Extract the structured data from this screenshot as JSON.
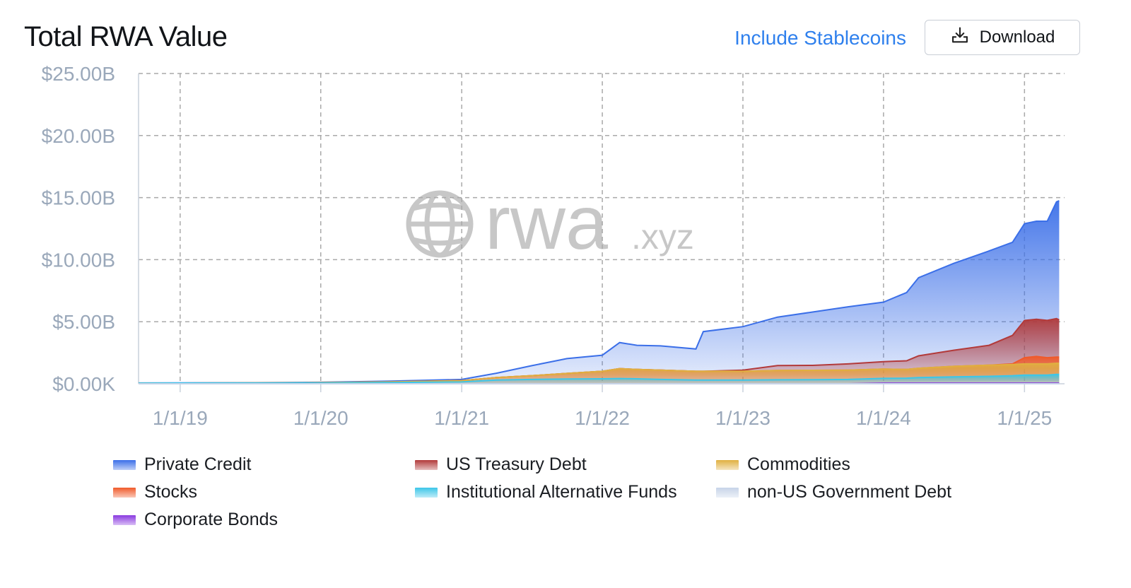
{
  "header": {
    "title": "Total RWA Value",
    "stablecoin_toggle": "Include Stablecoins",
    "download_label": "Download",
    "download_icon": "download-icon"
  },
  "watermark": {
    "brand": "rwa",
    "suffix": ".xyz",
    "icon": "globe-icon"
  },
  "colors": {
    "private_credit": "#3b6fe8",
    "us_treasury": "#b23a3a",
    "commodities": "#e0b040",
    "stocks": "#f05a2a",
    "institutional_alt": "#3cc6e8",
    "non_us_gov": "#c7d4e8",
    "corporate_bonds": "#8a3ae0"
  },
  "chart_data": {
    "type": "area",
    "title": "Total RWA Value",
    "stacked": true,
    "y_ticks": [
      "$0.00K",
      "$5.00B",
      "$10.00B",
      "$15.00B",
      "$20.00B",
      "$25.00B"
    ],
    "ylim": [
      0,
      25
    ],
    "y_unit": "$B",
    "x_ticks": [
      "1/1/19",
      "1/1/20",
      "1/1/21",
      "1/1/22",
      "1/1/23",
      "1/1/24",
      "1/1/25"
    ],
    "xlim": [
      "2018-09-15",
      "2025-04-15"
    ],
    "grid": true,
    "legend_position": "bottom",
    "x": [
      "2018-09-15",
      "2019-06-01",
      "2020-01-01",
      "2020-07-01",
      "2021-01-01",
      "2021-04-01",
      "2021-07-01",
      "2021-10-01",
      "2022-01-01",
      "2022-02-15",
      "2022-04-01",
      "2022-06-01",
      "2022-09-01",
      "2022-09-20",
      "2023-01-01",
      "2023-04-01",
      "2023-07-01",
      "2023-10-01",
      "2024-01-01",
      "2024-03-01",
      "2024-04-01",
      "2024-07-01",
      "2024-10-01",
      "2024-12-01",
      "2025-01-01",
      "2025-02-01",
      "2025-03-01",
      "2025-03-25",
      "2025-04-01"
    ],
    "series": [
      {
        "name": "Private Credit",
        "key": "private_credit",
        "values": [
          0.01,
          0.02,
          0.03,
          0.06,
          0.1,
          0.35,
          0.8,
          1.2,
          1.3,
          2.1,
          1.95,
          1.95,
          1.8,
          3.2,
          3.5,
          3.9,
          4.3,
          4.6,
          4.8,
          5.5,
          6.3,
          7.0,
          7.6,
          7.5,
          7.8,
          7.9,
          8.0,
          9.4,
          9.6
        ]
      },
      {
        "name": "US Treasury Debt",
        "key": "us_treasury",
        "values": [
          0,
          0,
          0,
          0,
          0,
          0,
          0,
          0,
          0,
          0,
          0,
          0,
          0,
          0,
          0.1,
          0.4,
          0.4,
          0.5,
          0.6,
          0.7,
          1.0,
          1.3,
          1.6,
          2.3,
          3.0,
          3.0,
          3.0,
          3.1,
          3.0
        ]
      },
      {
        "name": "Commodities",
        "key": "commodities",
        "values": [
          0,
          0,
          0.02,
          0.05,
          0.1,
          0.2,
          0.3,
          0.45,
          0.6,
          0.8,
          0.75,
          0.75,
          0.7,
          0.7,
          0.7,
          0.75,
          0.75,
          0.75,
          0.75,
          0.7,
          0.75,
          0.85,
          0.9,
          0.9,
          0.9,
          0.9,
          0.9,
          0.9,
          0.9
        ]
      },
      {
        "name": "Stocks",
        "key": "stocks",
        "values": [
          0,
          0,
          0,
          0,
          0,
          0,
          0,
          0,
          0,
          0,
          0,
          0,
          0,
          0,
          0,
          0,
          0,
          0,
          0,
          0,
          0,
          0,
          0,
          0.05,
          0.5,
          0.6,
          0.5,
          0.5,
          0.5
        ]
      },
      {
        "name": "Institutional Alternative Funds",
        "key": "institutional_alt",
        "values": [
          0.05,
          0.06,
          0.07,
          0.1,
          0.15,
          0.3,
          0.35,
          0.38,
          0.4,
          0.42,
          0.4,
          0.35,
          0.3,
          0.3,
          0.3,
          0.32,
          0.33,
          0.35,
          0.38,
          0.4,
          0.45,
          0.5,
          0.55,
          0.6,
          0.65,
          0.65,
          0.65,
          0.7,
          0.7
        ]
      },
      {
        "name": "non-US Government Debt",
        "key": "non_us_gov",
        "values": [
          0,
          0,
          0,
          0,
          0,
          0,
          0,
          0,
          0,
          0,
          0,
          0,
          0,
          0,
          0,
          0,
          0,
          0,
          0,
          0,
          0,
          0,
          0,
          0,
          0,
          0,
          0,
          0,
          0
        ]
      },
      {
        "name": "Corporate Bonds",
        "key": "corporate_bonds",
        "values": [
          0,
          0,
          0,
          0,
          0,
          0,
          0,
          0,
          0,
          0,
          0,
          0,
          0,
          0,
          0,
          0,
          0,
          0,
          0.05,
          0.05,
          0.05,
          0.05,
          0.05,
          0.05,
          0.05,
          0.05,
          0.05,
          0.05,
          0.05
        ]
      }
    ]
  }
}
